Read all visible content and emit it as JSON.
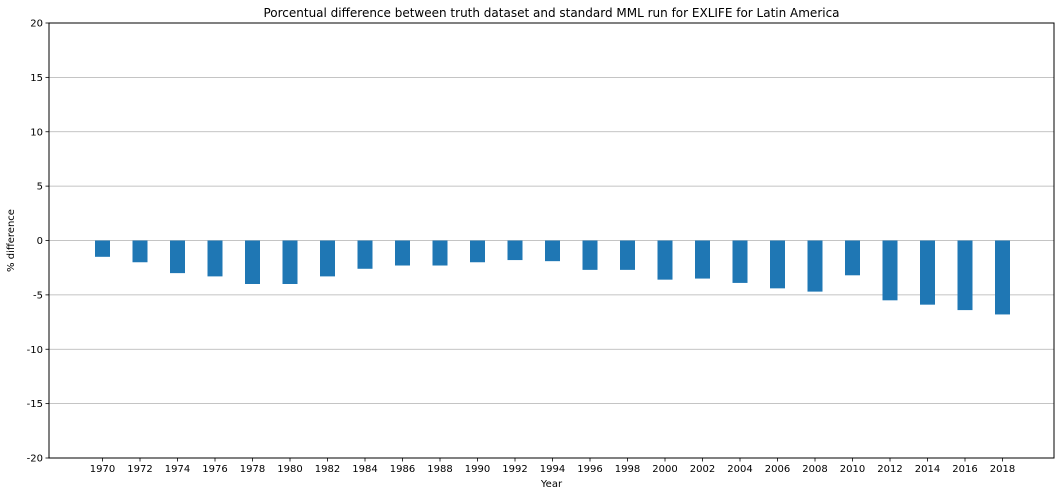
{
  "chart_data": {
    "type": "bar",
    "title": "Porcentual difference between truth dataset and standard MML run for EXLIFE for Latin America",
    "xlabel": "Year",
    "ylabel": "% difference",
    "ylim": [
      -20,
      20
    ],
    "yticks": [
      -20,
      -15,
      -10,
      -5,
      0,
      5,
      10,
      15,
      20
    ],
    "grid": "horizontal",
    "bar_color": "#1f77b4",
    "categories": [
      "1970",
      "1972",
      "1974",
      "1976",
      "1978",
      "1980",
      "1982",
      "1984",
      "1986",
      "1988",
      "1990",
      "1992",
      "1994",
      "1996",
      "1998",
      "2000",
      "2002",
      "2004",
      "2006",
      "2008",
      "2010",
      "2012",
      "2014",
      "2016",
      "2018"
    ],
    "values": [
      -1.5,
      -2.0,
      -3.0,
      -3.3,
      -4.0,
      -4.0,
      -3.3,
      -2.6,
      -2.3,
      -2.3,
      -2.0,
      -1.8,
      -1.9,
      -2.7,
      -2.7,
      -3.6,
      -3.5,
      -3.9,
      -4.4,
      -4.7,
      -3.2,
      -5.5,
      -5.9,
      -6.4,
      -6.8
    ]
  }
}
